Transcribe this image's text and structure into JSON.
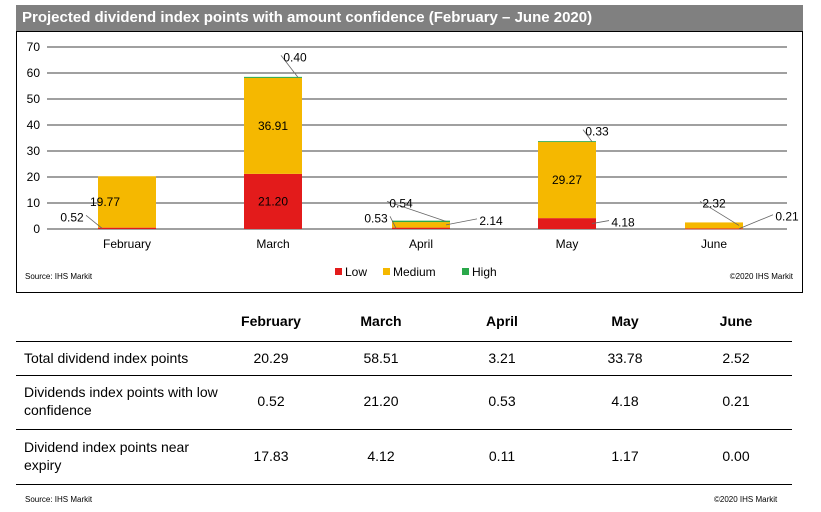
{
  "title": "Projected dividend index points with amount confidence (February – June 2020)",
  "chart_data": {
    "type": "bar",
    "stacked": true,
    "categories": [
      "February",
      "March",
      "April",
      "May",
      "June"
    ],
    "series": [
      {
        "name": "Low",
        "color": "#e31b1b",
        "values": [
          0.52,
          21.2,
          0.53,
          4.18,
          0.21
        ]
      },
      {
        "name": "Medium",
        "color": "#f5b800",
        "values": [
          19.77,
          36.91,
          2.14,
          29.27,
          2.32
        ]
      },
      {
        "name": "High",
        "color": "#2aa84a",
        "values": [
          0.0,
          0.4,
          0.54,
          0.33,
          0.0
        ]
      }
    ],
    "ylim": [
      0,
      70
    ],
    "yticks": [
      0,
      10,
      20,
      30,
      40,
      50,
      60,
      70
    ],
    "grid": true,
    "legend": "bottom-center",
    "data_labels": [
      {
        "category": "February",
        "series": "Low",
        "text": "0.52"
      },
      {
        "category": "February",
        "series": "Medium",
        "text": "19.77"
      },
      {
        "category": "March",
        "series": "Low",
        "text": "21.20"
      },
      {
        "category": "March",
        "series": "Medium",
        "text": "36.91"
      },
      {
        "category": "March",
        "series": "High",
        "text": "0.40"
      },
      {
        "category": "April",
        "series": "Low",
        "text": "0.53"
      },
      {
        "category": "April",
        "series": "Medium",
        "text": "2.14"
      },
      {
        "category": "April",
        "series": "High",
        "text": "0.54"
      },
      {
        "category": "May",
        "series": "Low",
        "text": "4.18"
      },
      {
        "category": "May",
        "series": "Medium",
        "text": "29.27"
      },
      {
        "category": "May",
        "series": "High",
        "text": "0.33"
      },
      {
        "category": "June",
        "series": "Low",
        "text": "0.21"
      },
      {
        "category": "June",
        "series": "Medium",
        "text": "2.32"
      }
    ]
  },
  "chart_source": "Source: IHS Markit",
  "chart_copyright": "©2020 IHS Markit",
  "table": {
    "columns": [
      "February",
      "March",
      "April",
      "May",
      "June"
    ],
    "rows": [
      {
        "label": "Total dividend index points",
        "values": [
          "20.29",
          "58.51",
          "3.21",
          "33.78",
          "2.52"
        ]
      },
      {
        "label": "Dividends index points with low confidence",
        "values": [
          "0.52",
          "21.20",
          "0.53",
          "4.18",
          "0.21"
        ]
      },
      {
        "label": "Dividend index points near expiry",
        "values": [
          "17.83",
          "4.12",
          "0.11",
          "1.17",
          "0.00"
        ]
      }
    ]
  },
  "footer_source": "Source: IHS Markit",
  "footer_copyright": "©2020 IHS Markit"
}
